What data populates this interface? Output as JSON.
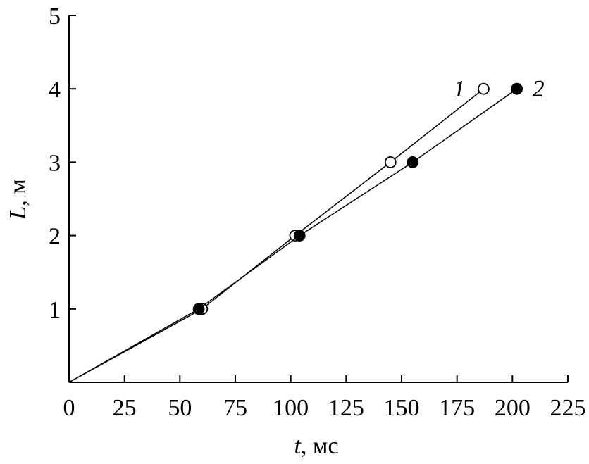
{
  "chart_data": {
    "type": "line",
    "xlabel_symbol": "t",
    "xlabel_unit": ", мс",
    "ylabel_symbol": "L",
    "ylabel_unit": ", м",
    "xlim": [
      0,
      225
    ],
    "xticks": [
      0,
      25,
      50,
      75,
      100,
      125,
      150,
      175,
      200,
      225
    ],
    "ylim": [
      0,
      5
    ],
    "yticks": [
      1,
      2,
      3,
      4,
      5
    ],
    "series": [
      {
        "name": "1",
        "color": "#000000",
        "marker": "open",
        "x": [
          60,
          102,
          145,
          187
        ],
        "values": [
          1,
          2,
          3,
          4
        ]
      },
      {
        "name": "2",
        "color": "#000000",
        "marker": "filled",
        "x": [
          58.5,
          104,
          155,
          202
        ],
        "values": [
          1,
          2,
          3,
          4
        ]
      }
    ]
  }
}
